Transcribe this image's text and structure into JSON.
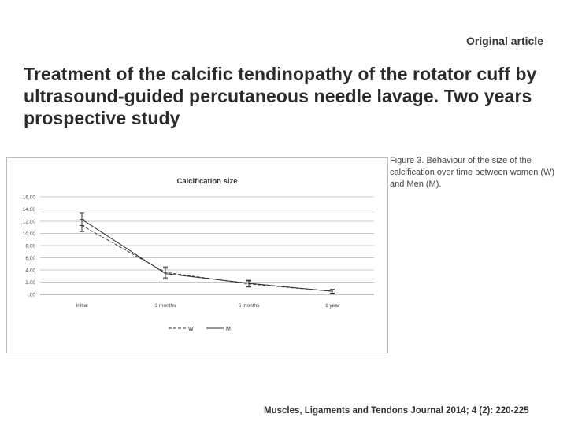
{
  "header": {
    "article_type": "Original article",
    "title": "Treatment of the calcific tendinopathy of the rotator cuff by ultrasound-guided percutaneous needle lavage. Two years prospective study"
  },
  "figure": {
    "caption": "Figure 3. Behaviour of the size of the calcification over time between women (W) and Men (M)."
  },
  "chart_data": {
    "type": "line",
    "title": "Calcification size",
    "xlabel": "",
    "ylabel": "",
    "categories": [
      "Initial",
      "3 months",
      "6 months",
      "1 year"
    ],
    "y_tick_labels": [
      "16,00",
      "14,00",
      "12,00",
      "10,00",
      "8,00",
      "6,00",
      "4,00",
      "2,00",
      ",00"
    ],
    "ylim": [
      0,
      16
    ],
    "grid": true,
    "legend_position": "bottom",
    "series": [
      {
        "name": "W",
        "style": "dashed",
        "values": [
          11.3,
          3.6,
          1.7,
          0.5
        ],
        "error": [
          1.0,
          0.9,
          0.5,
          0.3
        ]
      },
      {
        "name": "M",
        "style": "solid",
        "values": [
          12.3,
          3.4,
          1.8,
          0.5
        ],
        "error": [
          1.0,
          0.9,
          0.5,
          0.3
        ]
      }
    ]
  },
  "footer": {
    "journal_citation": "Muscles, Ligaments and Tendons Journal 2014; 4 (2): 220-225"
  }
}
